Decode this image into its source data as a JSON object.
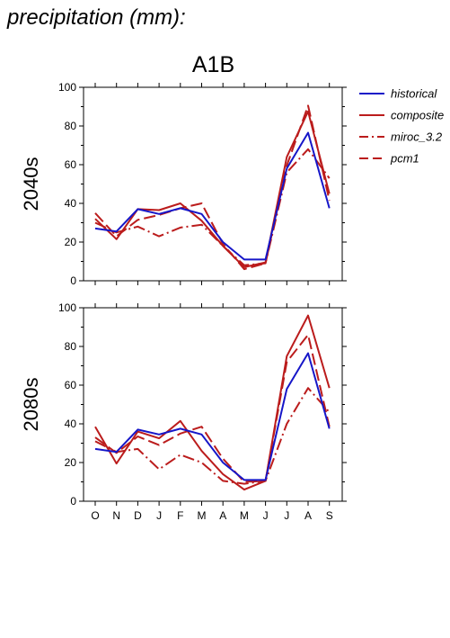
{
  "page": {
    "title": "precipitation (mm):",
    "scenario": "A1B"
  },
  "colors": {
    "historical": "#1616c8",
    "models": "#bb1c1c"
  },
  "chart_data": [
    {
      "type": "line",
      "row_label": "2040s",
      "categories": [
        "O",
        "N",
        "D",
        "J",
        "F",
        "M",
        "A",
        "M",
        "J",
        "J",
        "A",
        "S"
      ],
      "ylim": [
        0,
        100
      ],
      "yticks": [
        0,
        20,
        40,
        60,
        80,
        100
      ],
      "legend_position": "right",
      "series": [
        {
          "name": "historical",
          "dash": "solid",
          "color": "#1616c8",
          "values": [
            27,
            25.5,
            37,
            34.5,
            37.5,
            34.5,
            20,
            11,
            11,
            58,
            76.5,
            37.5
          ]
        },
        {
          "name": "composite",
          "dash": "solid",
          "color": "#bb1c1c",
          "values": [
            32,
            21.5,
            37,
            36.5,
            40,
            31,
            18,
            7,
            9.5,
            64,
            87.5,
            45
          ]
        },
        {
          "name": "miroc_3.2",
          "dash": "dashdot",
          "color": "#bb1c1c",
          "values": [
            30,
            25,
            28,
            23,
            27.5,
            29,
            18,
            8,
            9,
            56,
            68,
            53
          ]
        },
        {
          "name": "pcm1",
          "dash": "dash",
          "color": "#bb1c1c",
          "values": [
            35,
            23,
            31.5,
            34,
            37.5,
            40,
            19,
            6,
            9,
            59.5,
            90.5,
            41.5
          ]
        }
      ]
    },
    {
      "type": "line",
      "row_label": "2080s",
      "categories": [
        "O",
        "N",
        "D",
        "J",
        "F",
        "M",
        "A",
        "M",
        "J",
        "J",
        "A",
        "S"
      ],
      "ylim": [
        0,
        100
      ],
      "yticks": [
        0,
        20,
        40,
        60,
        80,
        100
      ],
      "legend_position": "none",
      "series": [
        {
          "name": "historical",
          "dash": "solid",
          "color": "#1616c8",
          "values": [
            27,
            25.5,
            37,
            34.5,
            37.5,
            34.5,
            20,
            11,
            11,
            58,
            76.5,
            37.5
          ]
        },
        {
          "name": "composite",
          "dash": "solid",
          "color": "#bb1c1c",
          "values": [
            38.5,
            19.5,
            36,
            32.5,
            41.5,
            26,
            14,
            6,
            10.5,
            75,
            96,
            58.5
          ]
        },
        {
          "name": "miroc_3.2",
          "dash": "dashdot",
          "color": "#bb1c1c",
          "values": [
            31,
            25.5,
            27,
            16.5,
            24,
            20,
            10.5,
            9,
            10.5,
            40,
            58.5,
            46
          ]
        },
        {
          "name": "pcm1",
          "dash": "dash",
          "color": "#bb1c1c",
          "values": [
            33,
            25,
            33.5,
            29,
            35,
            38.5,
            22,
            10,
            10.5,
            72,
            86,
            38.5
          ]
        }
      ]
    }
  ]
}
